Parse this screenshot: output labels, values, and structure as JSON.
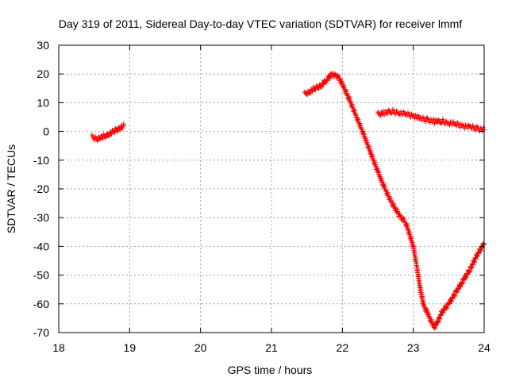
{
  "chart_data": {
    "type": "scatter",
    "title": "Day 319 of 2011, Sidereal Day-to-day VTEC variation (SDTVAR) for receiver lmmf",
    "xlabel": "GPS time / hours",
    "ylabel": "SDTVAR / TECUs",
    "xlim": [
      18,
      24
    ],
    "ylim": [
      -70,
      30
    ],
    "x_ticks": [
      "18",
      "19",
      "20",
      "21",
      "22",
      "23",
      "24"
    ],
    "y_ticks": [
      "30",
      "20",
      "10",
      "0",
      "-10",
      "-20",
      "-30",
      "-40",
      "-50",
      "-60",
      "-70"
    ],
    "grid": true,
    "marker": "+",
    "series": [
      {
        "name": "SDTVAR",
        "color": "#ff0000",
        "segments": [
          {
            "x": [
              18.47,
              18.55,
              18.62,
              18.7,
              18.78,
              18.85,
              18.92
            ],
            "y": [
              -2.0,
              -2.5,
              -2.0,
              -1.0,
              0.0,
              1.0,
              2.0
            ]
          },
          {
            "x": [
              21.47,
              21.55,
              21.62,
              21.7,
              21.78,
              21.85,
              21.9,
              21.95,
              22.0,
              22.1,
              22.2,
              22.3,
              22.4,
              22.5,
              22.6,
              22.7,
              22.8,
              22.9,
              23.0,
              23.05,
              23.1,
              23.15,
              23.2,
              23.25,
              23.3,
              23.35,
              23.4,
              23.5,
              23.6,
              23.7,
              23.8,
              23.9,
              24.0
            ],
            "y": [
              13.0,
              14.0,
              15.0,
              16.0,
              18.0,
              20.0,
              19.5,
              18.5,
              16.5,
              11.0,
              5.0,
              -1.0,
              -7.5,
              -14.0,
              -20.0,
              -25.0,
              -29.0,
              -32.0,
              -40.0,
              -47.0,
              -55.0,
              -61.0,
              -63.0,
              -66.0,
              -68.0,
              -66.0,
              -63.0,
              -60.0,
              -56.0,
              -52.0,
              -48.0,
              -43.0,
              -39.0
            ]
          },
          {
            "x": [
              22.5,
              22.6,
              22.7,
              22.8,
              22.9,
              23.0,
              23.1,
              23.2,
              23.3,
              23.4,
              23.5,
              23.6,
              23.7,
              23.8,
              23.9,
              24.0
            ],
            "y": [
              6.0,
              6.5,
              7.0,
              6.5,
              6.0,
              5.5,
              4.5,
              4.0,
              3.5,
              3.5,
              3.0,
              2.5,
              2.0,
              1.5,
              1.0,
              0.5
            ]
          }
        ]
      }
    ]
  }
}
